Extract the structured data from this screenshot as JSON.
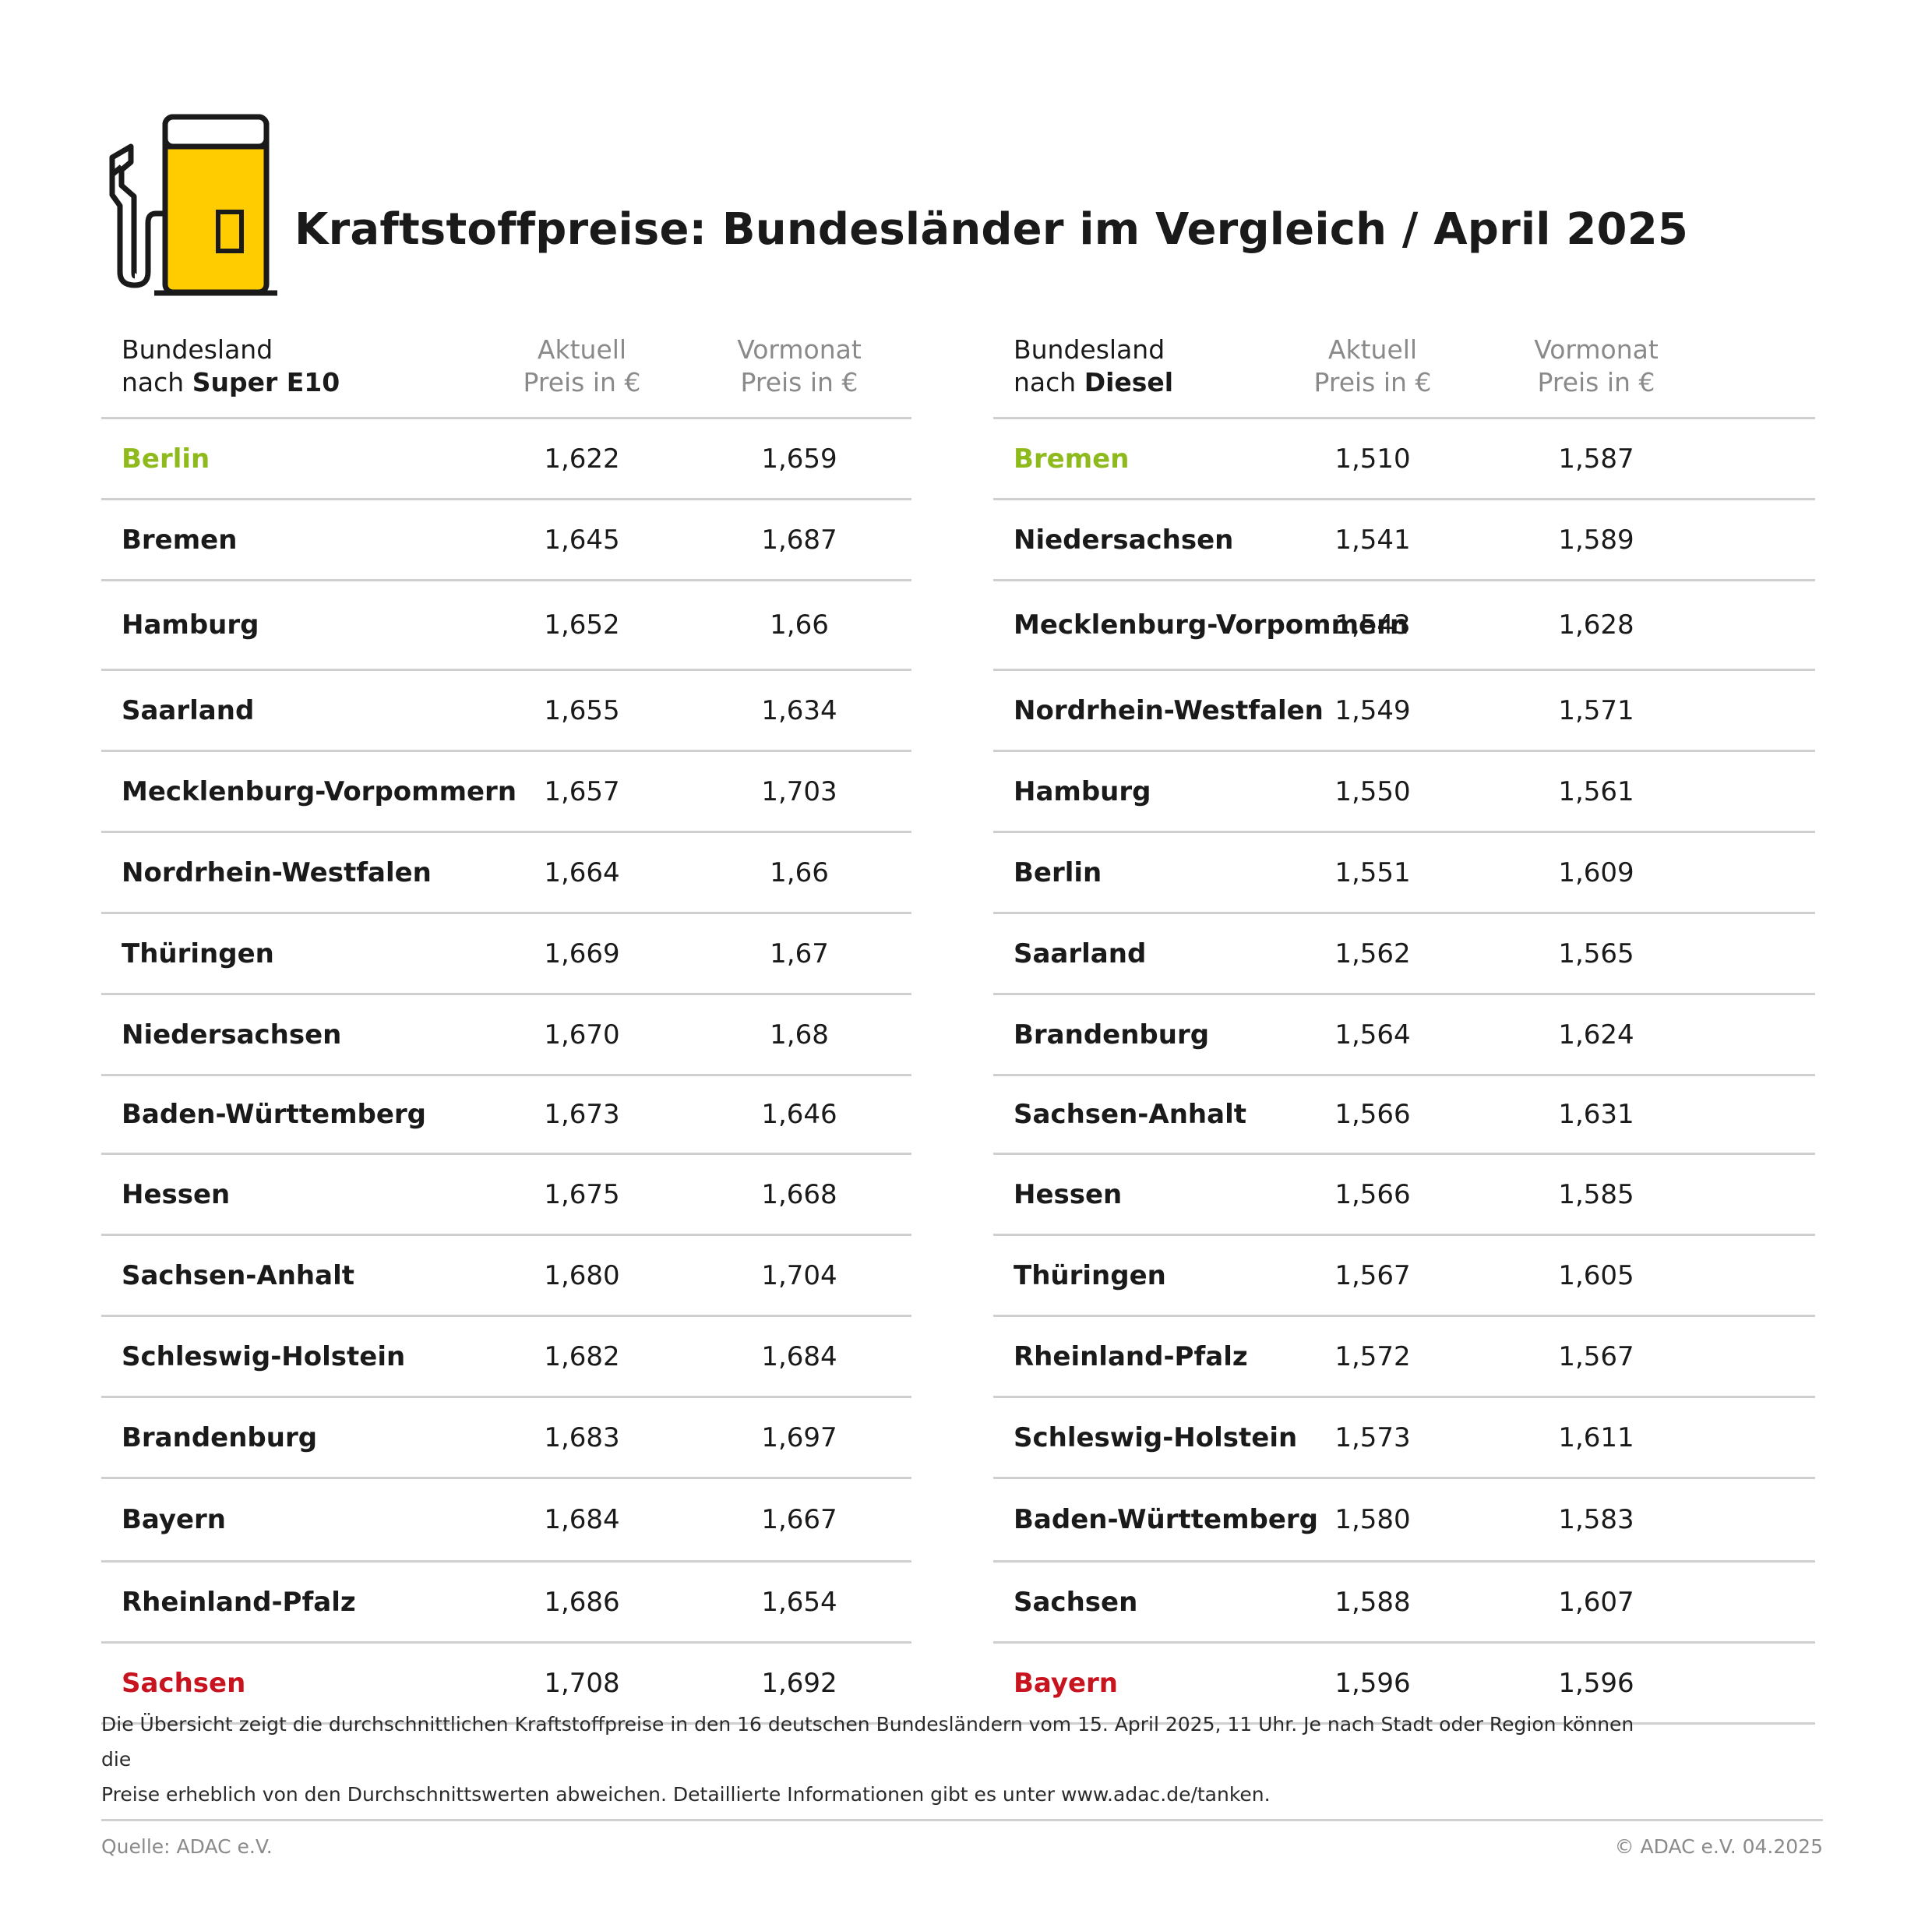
{
  "title": "Kraftstoffpreise: Bundesländer im Vergleich / April 2025",
  "colors": {
    "accent_yellow": "#ffcc00",
    "best_green": "#8fba1d",
    "worst_red": "#c8141e",
    "rule_grey": "#cfcfcf"
  },
  "chart_data": [
    {
      "type": "table",
      "header": {
        "name_line1": "Bundesland",
        "name_line2_prefix": "nach ",
        "name_line2_bold": "Super E10",
        "col1_line1": "Aktuell",
        "col1_line2": "Preis in €",
        "col2_line1": "Vormonat",
        "col2_line2": "Preis in €"
      },
      "rows": [
        {
          "name": "Berlin",
          "aktuell": "1,622",
          "vormonat": "1,659"
        },
        {
          "name": "Bremen",
          "aktuell": "1,645",
          "vormonat": "1,687"
        },
        {
          "name": "Hamburg",
          "aktuell": "1,652",
          "vormonat": "1,66"
        },
        {
          "name": "Saarland",
          "aktuell": "1,655",
          "vormonat": "1,634"
        },
        {
          "name": "Mecklenburg-Vorpommern",
          "aktuell": "1,657",
          "vormonat": "1,703"
        },
        {
          "name": "Nordrhein-Westfalen",
          "aktuell": "1,664",
          "vormonat": "1,66"
        },
        {
          "name": "Thüringen",
          "aktuell": "1,669",
          "vormonat": "1,67"
        },
        {
          "name": "Niedersachsen",
          "aktuell": "1,670",
          "vormonat": "1,68"
        },
        {
          "name": "Baden-Württemberg",
          "aktuell": "1,673",
          "vormonat": "1,646"
        },
        {
          "name": "Hessen",
          "aktuell": "1,675",
          "vormonat": "1,668"
        },
        {
          "name": "Sachsen-Anhalt",
          "aktuell": "1,680",
          "vormonat": "1,704"
        },
        {
          "name": "Schleswig-Holstein",
          "aktuell": "1,682",
          "vormonat": "1,684"
        },
        {
          "name": "Brandenburg",
          "aktuell": "1,683",
          "vormonat": "1,697"
        },
        {
          "name": "Bayern",
          "aktuell": "1,684",
          "vormonat": "1,667"
        },
        {
          "name": "Rheinland-Pfalz",
          "aktuell": "1,686",
          "vormonat": "1,654"
        },
        {
          "name": "Sachsen",
          "aktuell": "1,708",
          "vormonat": "1,692"
        }
      ]
    },
    {
      "type": "table",
      "header": {
        "name_line1": "Bundesland",
        "name_line2_prefix": "nach ",
        "name_line2_bold": "Diesel",
        "col1_line1": "Aktuell",
        "col1_line2": "Preis in €",
        "col2_line1": "Vormonat",
        "col2_line2": "Preis in €"
      },
      "rows": [
        {
          "name": "Bremen",
          "aktuell": "1,510",
          "vormonat": "1,587"
        },
        {
          "name": "Niedersachsen",
          "aktuell": "1,541",
          "vormonat": "1,589"
        },
        {
          "name": "Mecklenburg-Vorpommern",
          "aktuell": "1,543",
          "vormonat": "1,628"
        },
        {
          "name": "Nordrhein-Westfalen",
          "aktuell": "1,549",
          "vormonat": "1,571"
        },
        {
          "name": "Hamburg",
          "aktuell": "1,550",
          "vormonat": "1,561"
        },
        {
          "name": "Berlin",
          "aktuell": "1,551",
          "vormonat": "1,609"
        },
        {
          "name": "Saarland",
          "aktuell": "1,562",
          "vormonat": "1,565"
        },
        {
          "name": "Brandenburg",
          "aktuell": "1,564",
          "vormonat": "1,624"
        },
        {
          "name": "Sachsen-Anhalt",
          "aktuell": "1,566",
          "vormonat": "1,631"
        },
        {
          "name": "Hessen",
          "aktuell": "1,566",
          "vormonat": "1,585"
        },
        {
          "name": "Thüringen",
          "aktuell": "1,567",
          "vormonat": "1,605"
        },
        {
          "name": "Rheinland-Pfalz",
          "aktuell": "1,572",
          "vormonat": "1,567"
        },
        {
          "name": "Schleswig-Holstein",
          "aktuell": "1,573",
          "vormonat": "1,611"
        },
        {
          "name": "Baden-Württemberg",
          "aktuell": "1,580",
          "vormonat": "1,583"
        },
        {
          "name": "Sachsen",
          "aktuell": "1,588",
          "vormonat": "1,607"
        },
        {
          "name": "Bayern",
          "aktuell": "1,596",
          "vormonat": "1,596"
        }
      ]
    }
  ],
  "note_line1": "Die Übersicht zeigt die durchschnittlichen Kraftstoffpreise in den 16 deutschen Bundesländern vom 15. April 2025, 11 Uhr. Je nach Stadt oder Region können die",
  "note_line2": "Preise erheblich von den Durchschnittswerten abweichen. Detaillierte Informationen gibt es unter www.adac.de/tanken.",
  "source": "Quelle: ADAC e.V.",
  "copyright": "© ADAC e.V. 04.2025"
}
